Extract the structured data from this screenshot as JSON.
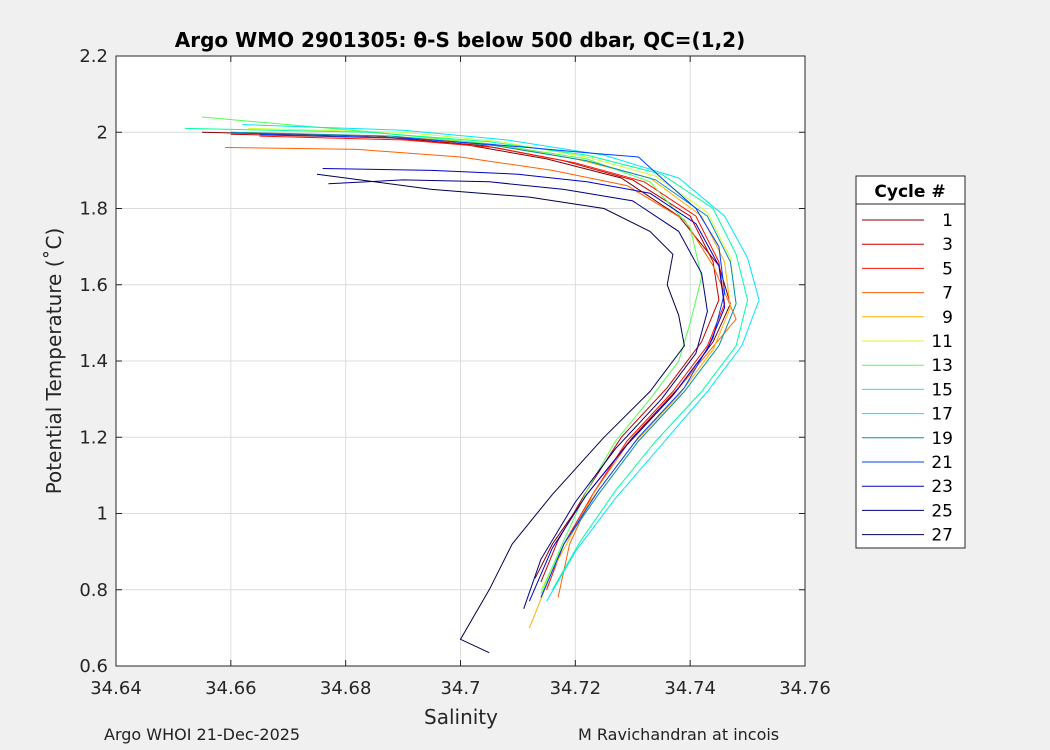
{
  "footer": {
    "left": "Argo WHOI 21-Dec-2025",
    "right": "M Ravichandran at incois"
  },
  "chart_data": {
    "type": "line",
    "title": "Argo WMO 2901305: θ-S below 500 dbar,  QC=(1,2)",
    "xlabel": "Salinity",
    "ylabel": "Potential Temperature (˚C)",
    "xlim": [
      34.64,
      34.76
    ],
    "ylim": [
      0.6,
      2.2
    ],
    "xticks": [
      "34.64",
      "34.66",
      "34.68",
      "34.7",
      "34.72",
      "34.74",
      "34.76"
    ],
    "yticks": [
      "0.6",
      "0.8",
      "1",
      "1.2",
      "1.4",
      "1.6",
      "1.8",
      "2",
      "2.2"
    ],
    "grid": true,
    "legend": {
      "title": "Cycle #",
      "placement": "outside-right"
    },
    "series": [
      {
        "name": "1",
        "color": "#800000",
        "points": [
          [
            34.655,
            2.0
          ],
          [
            34.685,
            1.99
          ],
          [
            34.7,
            1.97
          ],
          [
            34.715,
            1.93
          ],
          [
            34.728,
            1.88
          ],
          [
            34.738,
            1.78
          ],
          [
            34.745,
            1.65
          ],
          [
            34.747,
            1.55
          ],
          [
            34.744,
            1.45
          ],
          [
            34.738,
            1.33
          ],
          [
            34.73,
            1.2
          ],
          [
            34.722,
            1.05
          ],
          [
            34.716,
            0.92
          ],
          [
            34.713,
            0.83
          ]
        ]
      },
      {
        "name": "3",
        "color": "#c00000",
        "points": [
          [
            34.66,
            1.995
          ],
          [
            34.688,
            1.985
          ],
          [
            34.704,
            1.965
          ],
          [
            34.718,
            1.925
          ],
          [
            34.73,
            1.875
          ],
          [
            34.74,
            1.78
          ],
          [
            34.744,
            1.66
          ],
          [
            34.745,
            1.56
          ],
          [
            34.742,
            1.45
          ],
          [
            34.736,
            1.33
          ],
          [
            34.728,
            1.2
          ],
          [
            34.722,
            1.06
          ],
          [
            34.717,
            0.93
          ],
          [
            34.714,
            0.82
          ]
        ]
      },
      {
        "name": "5",
        "color": "#ff1000",
        "points": [
          [
            34.665,
            1.99
          ],
          [
            34.69,
            1.98
          ],
          [
            34.706,
            1.96
          ],
          [
            34.72,
            1.92
          ],
          [
            34.732,
            1.87
          ],
          [
            34.741,
            1.78
          ],
          [
            34.745,
            1.66
          ],
          [
            34.746,
            1.55
          ],
          [
            34.743,
            1.44
          ],
          [
            34.737,
            1.32
          ],
          [
            34.729,
            1.19
          ],
          [
            34.723,
            1.05
          ],
          [
            34.718,
            0.92
          ],
          [
            34.715,
            0.8
          ]
        ]
      },
      {
        "name": "7",
        "color": "#ff6000",
        "points": [
          [
            34.659,
            1.96
          ],
          [
            34.682,
            1.955
          ],
          [
            34.7,
            1.935
          ],
          [
            34.716,
            1.9
          ],
          [
            34.729,
            1.86
          ],
          [
            34.739,
            1.77
          ],
          [
            34.744,
            1.65
          ],
          [
            34.748,
            1.51
          ],
          [
            34.743,
            1.42
          ],
          [
            34.737,
            1.31
          ],
          [
            34.729,
            1.18
          ],
          [
            34.723,
            1.05
          ],
          [
            34.719,
            0.92
          ],
          [
            34.717,
            0.78
          ]
        ]
      },
      {
        "name": "9",
        "color": "#ffb000",
        "points": [
          [
            34.662,
            2.0
          ],
          [
            34.688,
            1.99
          ],
          [
            34.705,
            1.97
          ],
          [
            34.72,
            1.93
          ],
          [
            34.733,
            1.88
          ],
          [
            34.742,
            1.78
          ],
          [
            34.746,
            1.66
          ],
          [
            34.747,
            1.54
          ],
          [
            34.744,
            1.43
          ],
          [
            34.738,
            1.31
          ],
          [
            34.73,
            1.18
          ],
          [
            34.722,
            1.02
          ],
          [
            34.716,
            0.85
          ],
          [
            34.712,
            0.7
          ]
        ]
      },
      {
        "name": "11",
        "color": "#d0ff30",
        "points": [
          [
            34.663,
            2.01
          ],
          [
            34.69,
            2.0
          ],
          [
            34.707,
            1.975
          ],
          [
            34.722,
            1.935
          ],
          [
            34.734,
            1.885
          ],
          [
            34.743,
            1.79
          ],
          [
            34.747,
            1.67
          ],
          [
            34.748,
            1.55
          ],
          [
            34.745,
            1.44
          ],
          [
            34.739,
            1.32
          ],
          [
            34.731,
            1.19
          ],
          [
            34.724,
            1.05
          ],
          [
            34.718,
            0.92
          ],
          [
            34.714,
            0.8
          ]
        ]
      },
      {
        "name": "13",
        "color": "#50ff50",
        "points": [
          [
            34.655,
            2.04
          ],
          [
            34.685,
            2.0
          ],
          [
            34.705,
            1.97
          ],
          [
            34.722,
            1.93
          ],
          [
            34.733,
            1.87
          ],
          [
            34.74,
            1.75
          ],
          [
            34.742,
            1.62
          ],
          [
            34.74,
            1.5
          ],
          [
            34.738,
            1.4
          ],
          [
            34.733,
            1.3
          ],
          [
            34.727,
            1.19
          ],
          [
            34.722,
            1.06
          ],
          [
            34.718,
            0.93
          ],
          [
            34.714,
            0.79
          ]
        ]
      },
      {
        "name": "15",
        "color": "#00ff9f",
        "points": [
          [
            34.652,
            2.01
          ],
          [
            34.684,
            2.0
          ],
          [
            34.705,
            1.975
          ],
          [
            34.722,
            1.94
          ],
          [
            34.735,
            1.89
          ],
          [
            34.744,
            1.8
          ],
          [
            34.748,
            1.68
          ],
          [
            34.75,
            1.56
          ],
          [
            34.748,
            1.44
          ],
          [
            34.742,
            1.32
          ],
          [
            34.734,
            1.19
          ],
          [
            34.727,
            1.06
          ],
          [
            34.721,
            0.93
          ],
          [
            34.716,
            0.8
          ]
        ]
      },
      {
        "name": "17",
        "color": "#00e5ff",
        "points": [
          [
            34.662,
            2.02
          ],
          [
            34.69,
            2.005
          ],
          [
            34.708,
            1.98
          ],
          [
            34.725,
            1.94
          ],
          [
            34.738,
            1.88
          ],
          [
            34.746,
            1.78
          ],
          [
            34.75,
            1.67
          ],
          [
            34.752,
            1.56
          ],
          [
            34.749,
            1.44
          ],
          [
            34.743,
            1.32
          ],
          [
            34.735,
            1.18
          ],
          [
            34.727,
            1.04
          ],
          [
            34.72,
            0.9
          ],
          [
            34.715,
            0.77
          ]
        ]
      },
      {
        "name": "19",
        "color": "#008fbf",
        "points": [
          [
            34.66,
            2.0
          ],
          [
            34.688,
            1.99
          ],
          [
            34.706,
            1.965
          ],
          [
            34.722,
            1.925
          ],
          [
            34.734,
            1.875
          ],
          [
            34.743,
            1.78
          ],
          [
            34.747,
            1.66
          ],
          [
            34.748,
            1.55
          ],
          [
            34.745,
            1.44
          ],
          [
            34.739,
            1.32
          ],
          [
            34.731,
            1.19
          ],
          [
            34.724,
            1.05
          ],
          [
            34.718,
            0.92
          ],
          [
            34.714,
            0.78
          ]
        ]
      },
      {
        "name": "21",
        "color": "#0040ff",
        "points": [
          [
            34.665,
            1.995
          ],
          [
            34.69,
            1.985
          ],
          [
            34.708,
            1.965
          ],
          [
            34.723,
            1.945
          ],
          [
            34.731,
            1.935
          ],
          [
            34.735,
            1.88
          ],
          [
            34.741,
            1.8
          ],
          [
            34.745,
            1.7
          ],
          [
            34.746,
            1.58
          ],
          [
            34.744,
            1.46
          ],
          [
            34.739,
            1.33
          ],
          [
            34.731,
            1.2
          ],
          [
            34.724,
            1.06
          ],
          [
            34.718,
            0.92
          ],
          [
            34.714,
            0.78
          ]
        ]
      },
      {
        "name": "23",
        "color": "#0000c8",
        "points": [
          [
            34.676,
            1.905
          ],
          [
            34.695,
            1.9
          ],
          [
            34.71,
            1.89
          ],
          [
            34.722,
            1.87
          ],
          [
            34.733,
            1.84
          ],
          [
            34.741,
            1.76
          ],
          [
            34.745,
            1.65
          ],
          [
            34.746,
            1.54
          ],
          [
            34.743,
            1.43
          ],
          [
            34.737,
            1.31
          ],
          [
            34.729,
            1.18
          ],
          [
            34.722,
            1.05
          ],
          [
            34.716,
            0.91
          ],
          [
            34.712,
            0.77
          ]
        ]
      },
      {
        "name": "25",
        "color": "#000080",
        "points": [
          [
            34.677,
            1.865
          ],
          [
            34.69,
            1.875
          ],
          [
            34.705,
            1.87
          ],
          [
            34.718,
            1.85
          ],
          [
            34.73,
            1.82
          ],
          [
            34.738,
            1.74
          ],
          [
            34.742,
            1.63
          ],
          [
            34.743,
            1.53
          ],
          [
            34.741,
            1.42
          ],
          [
            34.735,
            1.3
          ],
          [
            34.727,
            1.17
          ],
          [
            34.72,
            1.03
          ],
          [
            34.714,
            0.88
          ],
          [
            34.711,
            0.75
          ]
        ]
      },
      {
        "name": "27",
        "color": "#00004d",
        "points": [
          [
            34.675,
            1.89
          ],
          [
            34.695,
            1.85
          ],
          [
            34.712,
            1.83
          ],
          [
            34.725,
            1.8
          ],
          [
            34.733,
            1.74
          ],
          [
            34.737,
            1.68
          ],
          [
            34.736,
            1.6
          ],
          [
            34.738,
            1.52
          ],
          [
            34.739,
            1.44
          ],
          [
            34.733,
            1.32
          ],
          [
            34.725,
            1.2
          ],
          [
            34.716,
            1.05
          ],
          [
            34.709,
            0.92
          ],
          [
            34.705,
            0.8
          ],
          [
            34.7,
            0.67
          ],
          [
            34.705,
            0.635
          ]
        ]
      }
    ]
  }
}
